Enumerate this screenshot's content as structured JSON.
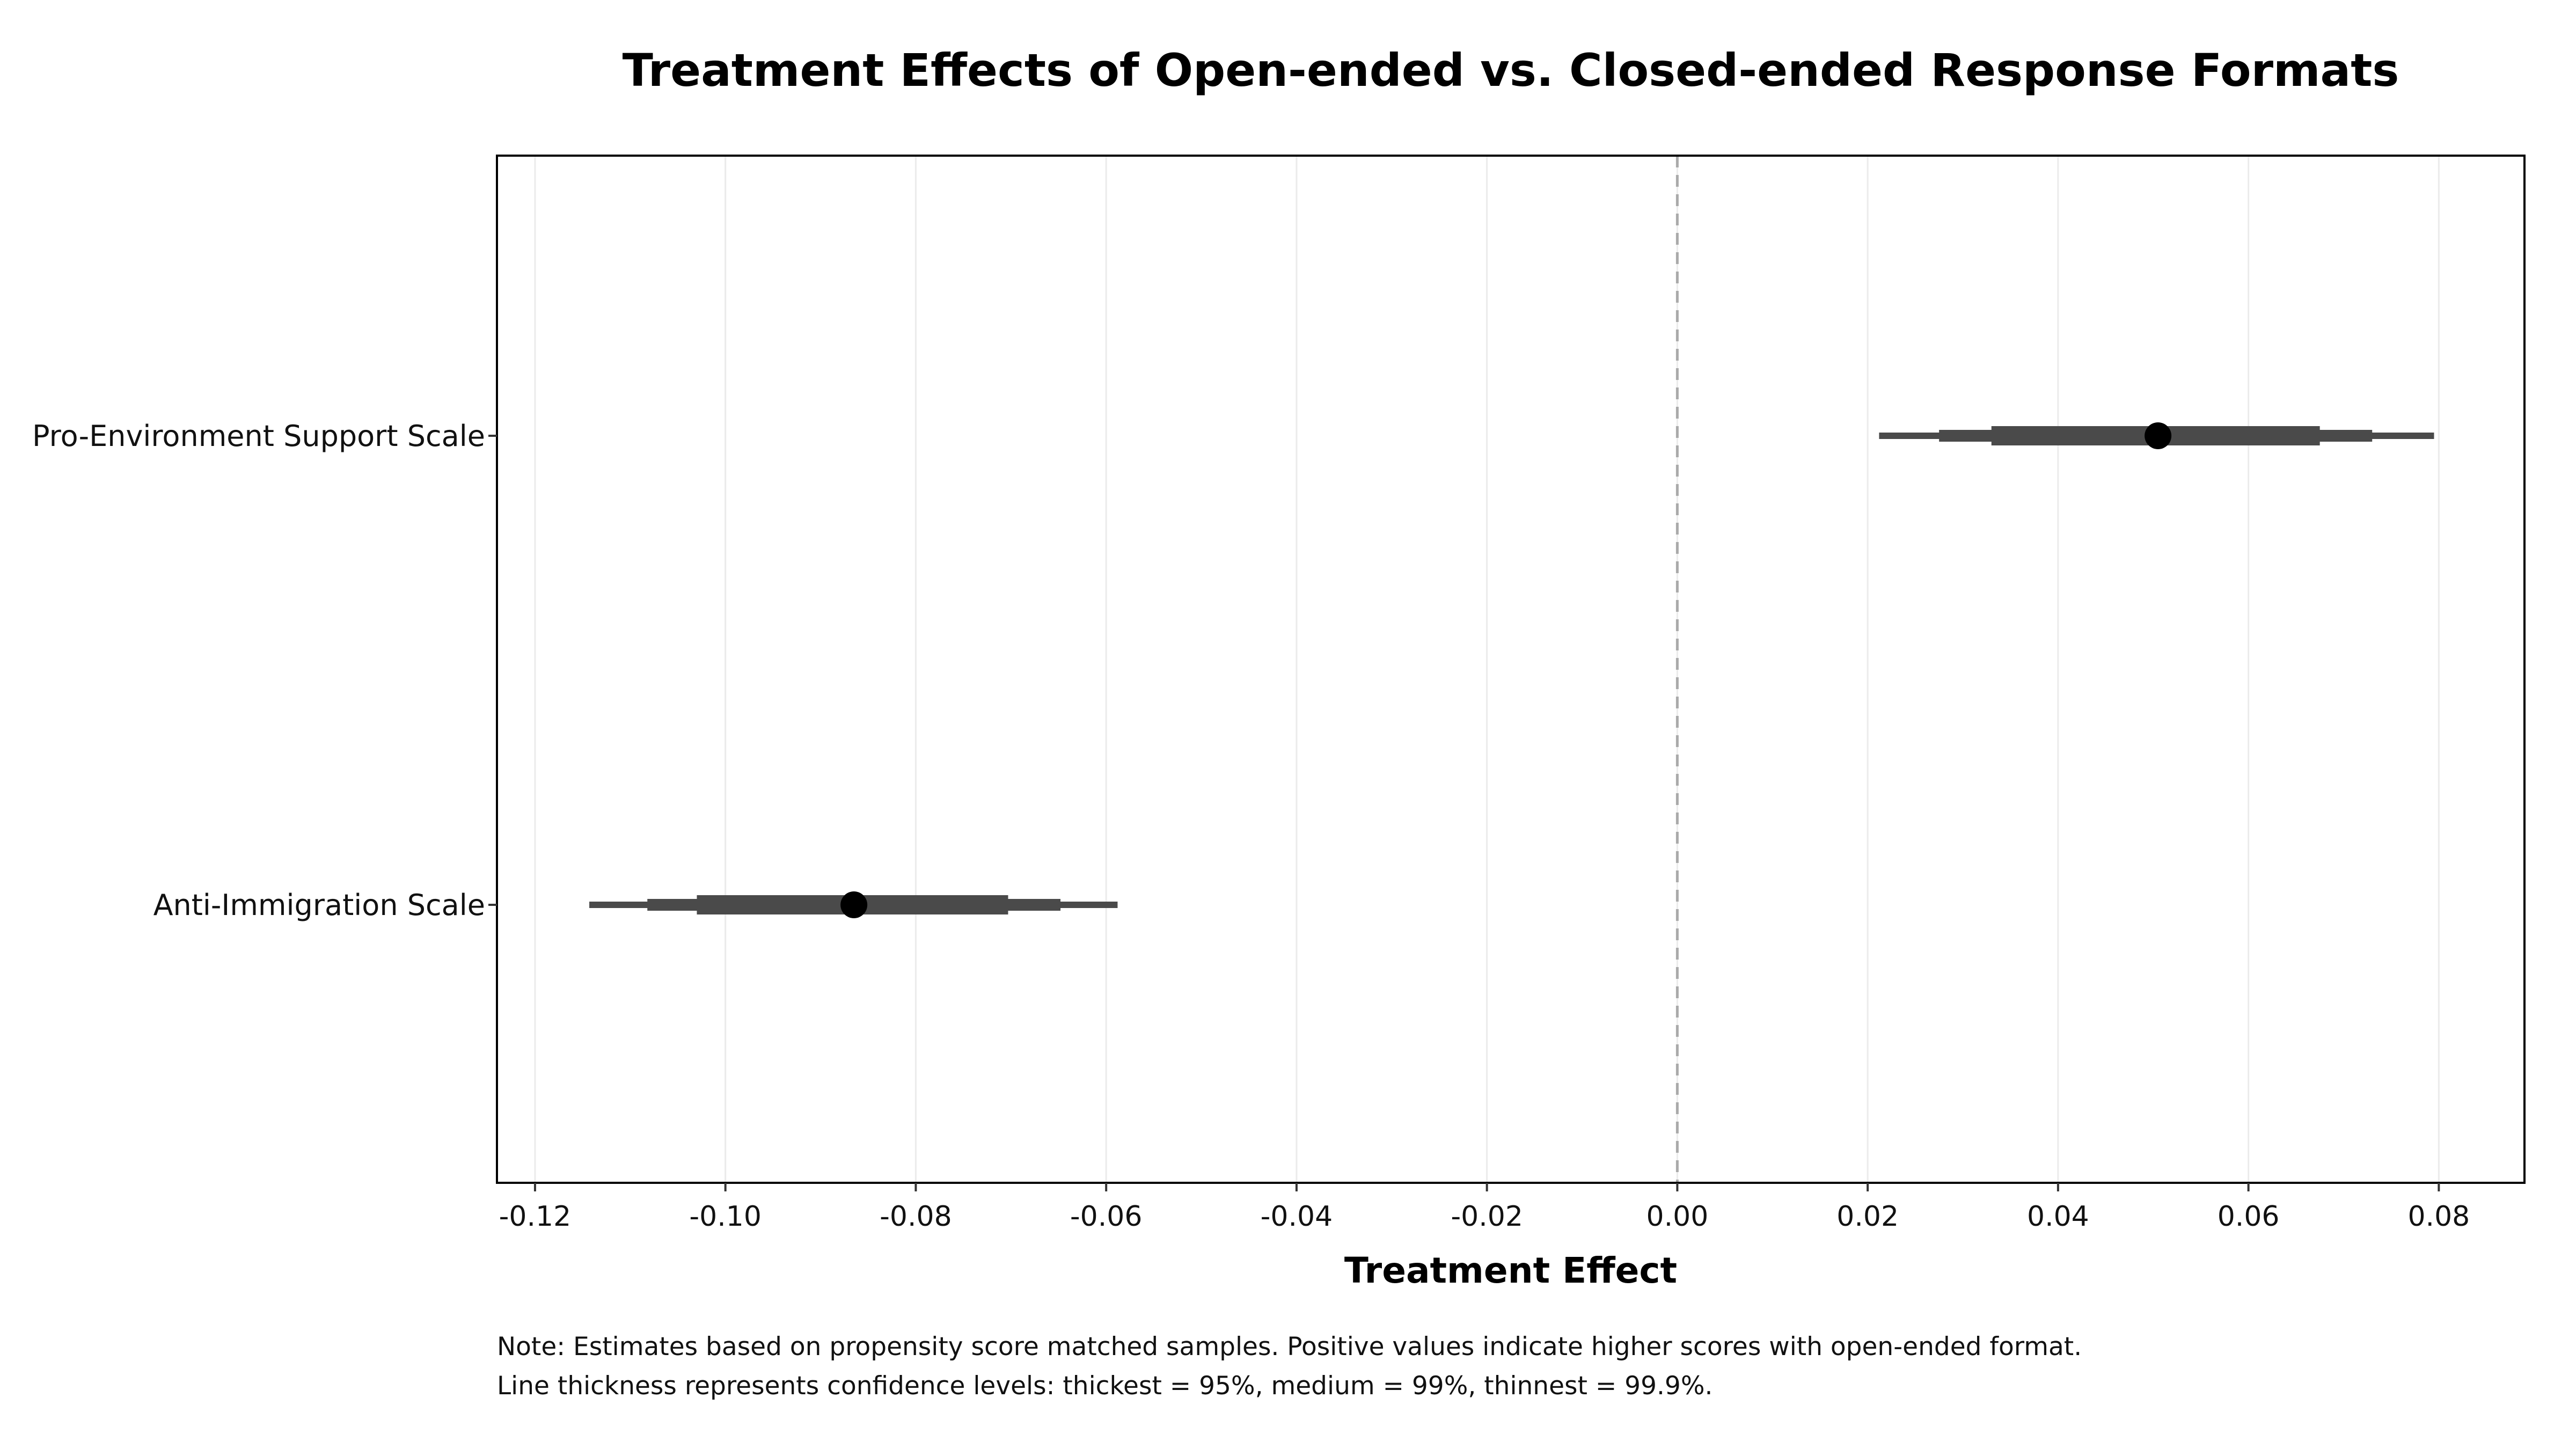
{
  "chart_data": {
    "type": "scatter",
    "subtype": "coefficient-plot",
    "title": "Treatment Effects of Open-ended vs. Closed-ended Response Formats",
    "xlabel": "Treatment Effect",
    "ylabel": "",
    "xlim": [
      -0.124,
      0.089
    ],
    "x_ticks": [
      -0.12,
      -0.1,
      -0.08,
      -0.06,
      -0.04,
      -0.02,
      0.0,
      0.02,
      0.04,
      0.06,
      0.08
    ],
    "x_tick_labels": [
      "-0.12",
      "-0.10",
      "-0.08",
      "-0.06",
      "-0.04",
      "-0.02",
      "0.00",
      "0.02",
      "0.04",
      "0.06",
      "0.08"
    ],
    "reference_line": {
      "x": 0,
      "style": "dashed",
      "color": "#aaaaaa"
    },
    "grid": {
      "vertical": true,
      "horizontal": false
    },
    "categories": [
      "Pro-Environment Support Scale",
      "Anti-Immigration Scale"
    ],
    "estimates": [
      {
        "label": "Pro-Environment Support Scale",
        "estimate": 0.0505,
        "ci95": [
          0.033,
          0.0675
        ],
        "ci99": [
          0.0275,
          0.073
        ],
        "ci999": [
          0.0212,
          0.0795
        ]
      },
      {
        "label": "Anti-Immigration Scale",
        "estimate": -0.0865,
        "ci95": [
          -0.103,
          -0.0703
        ],
        "ci99": [
          -0.1082,
          -0.0648
        ],
        "ci999": [
          -0.1143,
          -0.0588
        ]
      }
    ],
    "colors": {
      "interval": "#4a4a4a",
      "point": "#000000",
      "grid": "#ebebeb",
      "frame": "#000000"
    }
  },
  "notes": [
    "Note: Estimates based on propensity score matched samples. Positive values indicate higher scores with open-ended format.",
    "Line thickness represents confidence levels: thickest = 95%, medium = 99%, thinnest = 99.9%."
  ]
}
